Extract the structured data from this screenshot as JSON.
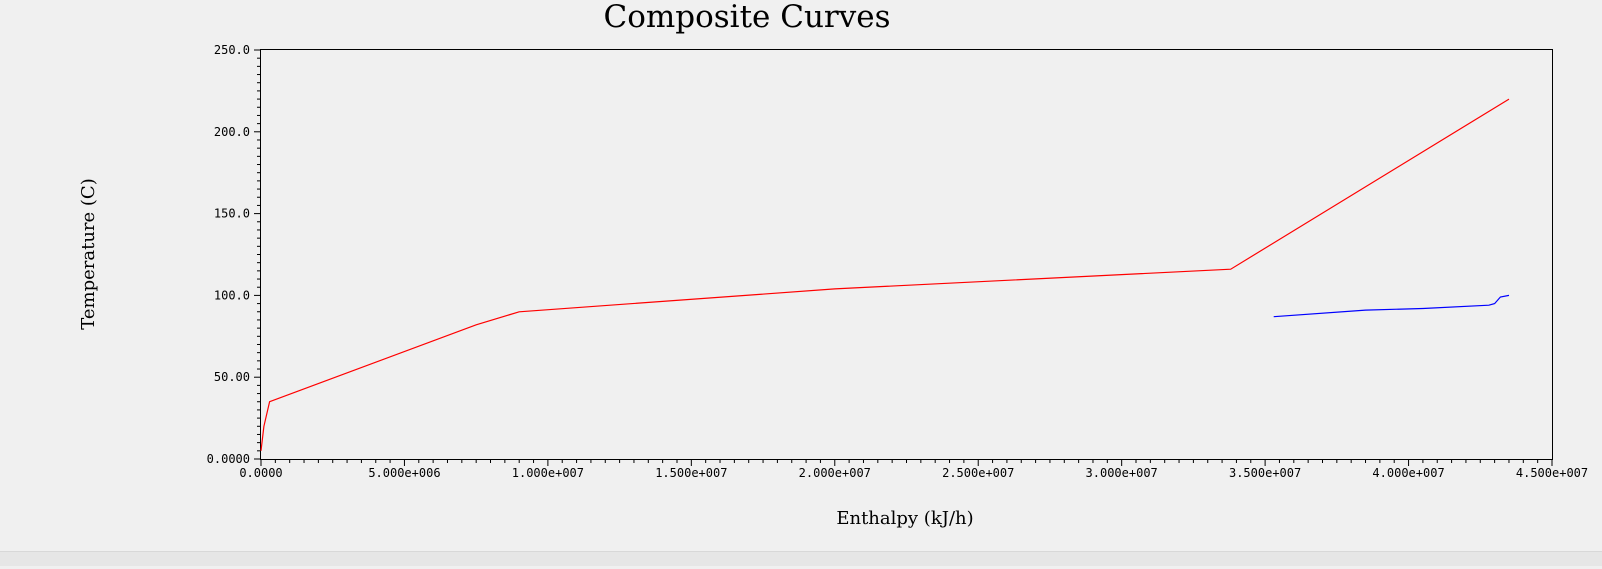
{
  "chart_data": {
    "type": "line",
    "title": "Composite Curves",
    "xlabel": "Enthalpy (kJ/h)",
    "ylabel": "Temperature (C)",
    "xlim": [
      0,
      45000000
    ],
    "ylim": [
      0,
      250
    ],
    "x_ticks": [
      0,
      5000000,
      10000000,
      15000000,
      20000000,
      25000000,
      30000000,
      35000000,
      40000000,
      45000000
    ],
    "x_tick_labels": [
      "0.0000",
      "5.000e+006",
      "1.000e+007",
      "1.500e+007",
      "2.000e+007",
      "2.500e+007",
      "3.000e+007",
      "3.500e+007",
      "4.000e+007",
      "4.500e+007"
    ],
    "y_ticks": [
      0,
      50,
      100,
      150,
      200,
      250
    ],
    "y_tick_labels": [
      "0.0000",
      "50.00",
      "100.0",
      "150.0",
      "200.0",
      "250.0"
    ],
    "grid": false,
    "series": [
      {
        "color": "#ff0000",
        "x": [
          0,
          100000,
          300000,
          7500000,
          9000000,
          20000000,
          33800000,
          43500000
        ],
        "y": [
          5,
          20,
          35,
          82,
          90,
          104,
          116,
          220
        ]
      },
      {
        "color": "#0000ff",
        "x": [
          35300000,
          38500000,
          40500000,
          42800000,
          43000000,
          43200000,
          43500000
        ],
        "y": [
          87,
          91,
          92,
          94,
          95,
          99,
          100
        ]
      }
    ]
  }
}
